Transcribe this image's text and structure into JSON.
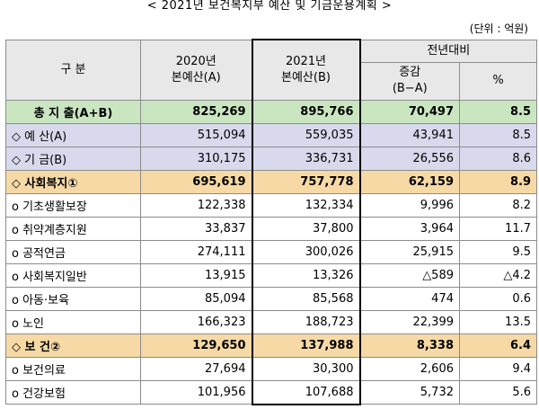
{
  "title": "< 2021년 보건복지부 예산 및 기금운용계획 >",
  "unit": "(단위 : 억원)",
  "header": {
    "category": "구 분",
    "col2020": "2020년\n본예산(A)",
    "col2021": "2021년\n본예산(B)",
    "yoy": "전년대비",
    "change": "증감\n(B−A)",
    "pct": "%"
  },
  "rows": [
    {
      "label": "총 지 출(A+B)",
      "v2020": "825,269",
      "v2021": "895,766",
      "change": "70,497",
      "pct": "8.5",
      "style": "tot bold",
      "center": true
    },
    {
      "label": "◇ 예 산(A)",
      "v2020": "515,094",
      "v2021": "559,035",
      "change": "43,941",
      "pct": "8.5",
      "style": "sub"
    },
    {
      "label": "◇ 기 금(B)",
      "v2020": "310,175",
      "v2021": "336,731",
      "change": "26,556",
      "pct": "8.6",
      "style": "sub"
    },
    {
      "label": "◇ 사회복지①",
      "v2020": "695,619",
      "v2021": "757,778",
      "change": "62,159",
      "pct": "8.9",
      "style": "hl bold"
    },
    {
      "label": "o 기초생활보장",
      "v2020": "122,338",
      "v2021": "132,334",
      "change": "9,996",
      "pct": "8.2",
      "style": ""
    },
    {
      "label": "o 취약계층지원",
      "v2020": "33,837",
      "v2021": "37,800",
      "change": "3,964",
      "pct": "11.7",
      "style": ""
    },
    {
      "label": "o 공적연금",
      "v2020": "274,111",
      "v2021": "300,026",
      "change": "25,915",
      "pct": "9.5",
      "style": ""
    },
    {
      "label": "o 사회복지일반",
      "v2020": "13,915",
      "v2021": "13,326",
      "change": "△589",
      "pct": "△4.2",
      "style": ""
    },
    {
      "label": "o 아동·보육",
      "v2020": "85,094",
      "v2021": "85,568",
      "change": "474",
      "pct": "0.6",
      "style": ""
    },
    {
      "label": "o 노인",
      "v2020": "166,323",
      "v2021": "188,723",
      "change": "22,399",
      "pct": "13.5",
      "style": ""
    },
    {
      "label": "◇ 보 건②",
      "v2020": "129,650",
      "v2021": "137,988",
      "change": "8,338",
      "pct": "6.4",
      "style": "hl bold"
    },
    {
      "label": "o 보건의료",
      "v2020": "27,694",
      "v2021": "30,300",
      "change": "2,606",
      "pct": "9.4",
      "style": ""
    },
    {
      "label": "o 건강보험",
      "v2020": "101,956",
      "v2021": "107,688",
      "change": "5,732",
      "pct": "5.6",
      "style": ""
    }
  ]
}
